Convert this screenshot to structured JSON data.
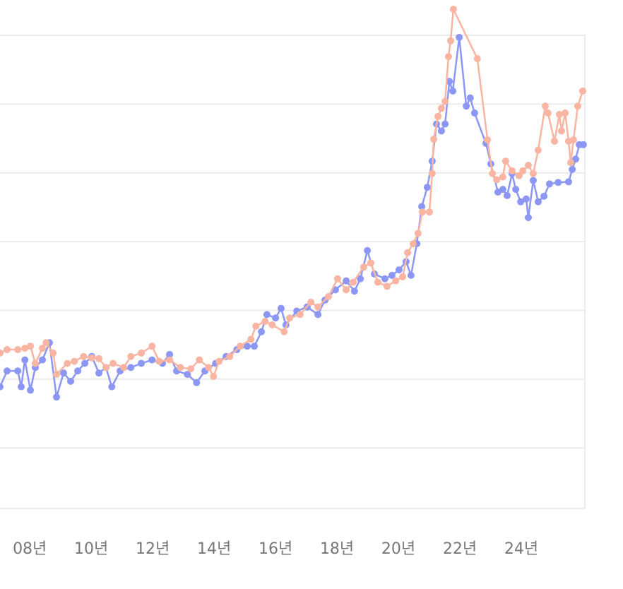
{
  "chart_data": {
    "type": "line",
    "title": "",
    "xlabel": "",
    "ylabel": "",
    "xlim": [
      2007.03,
      2026.07
    ],
    "ylim": [
      0.12,
      7
    ],
    "y_gridlines": [
      1,
      2,
      3,
      4,
      5,
      6,
      7
    ],
    "grid": true,
    "markers": true,
    "x_ticks": [
      {
        "value": 2008,
        "label": "08년"
      },
      {
        "value": 2010,
        "label": "10년"
      },
      {
        "value": 2012,
        "label": "12년"
      },
      {
        "value": 2014,
        "label": "14년"
      },
      {
        "value": 2016,
        "label": "16년"
      },
      {
        "value": 2018,
        "label": "18년"
      },
      {
        "value": 2020,
        "label": "20년"
      },
      {
        "value": 2022,
        "label": "22년"
      },
      {
        "value": 2024,
        "label": "24년"
      }
    ],
    "colors": {
      "grid": "#ebebeb",
      "tick_text": "#777777"
    },
    "series": [
      {
        "color": "#8c97f5",
        "points": [
          [
            2007.03,
            1.89
          ],
          [
            2007.26,
            2.12
          ],
          [
            2007.61,
            2.12
          ],
          [
            2007.72,
            1.89
          ],
          [
            2007.84,
            2.28
          ],
          [
            2008.02,
            1.84
          ],
          [
            2008.18,
            2.17
          ],
          [
            2008.41,
            2.28
          ],
          [
            2008.64,
            2.53
          ],
          [
            2008.87,
            1.74
          ],
          [
            2009.1,
            2.09
          ],
          [
            2009.33,
            1.97
          ],
          [
            2009.56,
            2.12
          ],
          [
            2009.79,
            2.23
          ],
          [
            2010.02,
            2.33
          ],
          [
            2010.25,
            2.09
          ],
          [
            2010.48,
            2.17
          ],
          [
            2010.67,
            1.89
          ],
          [
            2010.94,
            2.12
          ],
          [
            2011.29,
            2.17
          ],
          [
            2011.63,
            2.23
          ],
          [
            2011.98,
            2.28
          ],
          [
            2012.32,
            2.23
          ],
          [
            2012.55,
            2.36
          ],
          [
            2012.78,
            2.12
          ],
          [
            2013.13,
            2.07
          ],
          [
            2013.43,
            1.95
          ],
          [
            2013.7,
            2.12
          ],
          [
            2014.05,
            2.23
          ],
          [
            2014.39,
            2.33
          ],
          [
            2014.74,
            2.43
          ],
          [
            2015.08,
            2.48
          ],
          [
            2015.31,
            2.48
          ],
          [
            2015.54,
            2.69
          ],
          [
            2015.72,
            2.94
          ],
          [
            2016.0,
            2.89
          ],
          [
            2016.18,
            3.03
          ],
          [
            2016.34,
            2.79
          ],
          [
            2016.69,
            2.99
          ],
          [
            2017.03,
            3.05
          ],
          [
            2017.38,
            2.94
          ],
          [
            2017.61,
            3.15
          ],
          [
            2017.95,
            3.3
          ],
          [
            2018.3,
            3.43
          ],
          [
            2018.57,
            3.28
          ],
          [
            2018.76,
            3.46
          ],
          [
            2018.99,
            3.87
          ],
          [
            2019.22,
            3.53
          ],
          [
            2019.56,
            3.46
          ],
          [
            2019.79,
            3.51
          ],
          [
            2020.02,
            3.59
          ],
          [
            2020.25,
            3.71
          ],
          [
            2020.41,
            3.51
          ],
          [
            2020.6,
            3.97
          ],
          [
            2020.76,
            4.51
          ],
          [
            2020.94,
            4.79
          ],
          [
            2021.1,
            5.17
          ],
          [
            2021.24,
            5.71
          ],
          [
            2021.4,
            5.61
          ],
          [
            2021.52,
            5.71
          ],
          [
            2021.66,
            6.33
          ],
          [
            2021.77,
            6.19
          ],
          [
            2021.98,
            6.97
          ],
          [
            2022.21,
            5.97
          ],
          [
            2022.34,
            6.09
          ],
          [
            2022.48,
            5.87
          ],
          [
            2022.85,
            5.43
          ],
          [
            2023.01,
            5.13
          ],
          [
            2023.24,
            4.72
          ],
          [
            2023.4,
            4.76
          ],
          [
            2023.54,
            4.67
          ],
          [
            2023.7,
            4.99
          ],
          [
            2023.82,
            4.76
          ],
          [
            2023.98,
            4.58
          ],
          [
            2024.16,
            4.62
          ],
          [
            2024.23,
            4.35
          ],
          [
            2024.39,
            4.89
          ],
          [
            2024.55,
            4.58
          ],
          [
            2024.74,
            4.66
          ],
          [
            2024.92,
            4.84
          ],
          [
            2025.2,
            4.86
          ],
          [
            2025.54,
            4.87
          ],
          [
            2025.66,
            5.05
          ],
          [
            2025.77,
            5.2
          ],
          [
            2025.89,
            5.41
          ],
          [
            2026.02,
            5.41
          ]
        ]
      },
      {
        "color": "#f9b4a2",
        "points": [
          [
            2007.03,
            2.38
          ],
          [
            2007.26,
            2.43
          ],
          [
            2007.61,
            2.43
          ],
          [
            2007.84,
            2.45
          ],
          [
            2008.02,
            2.48
          ],
          [
            2008.18,
            2.23
          ],
          [
            2008.41,
            2.45
          ],
          [
            2008.53,
            2.53
          ],
          [
            2008.76,
            2.38
          ],
          [
            2008.87,
            2.07
          ],
          [
            2009.22,
            2.23
          ],
          [
            2009.45,
            2.26
          ],
          [
            2009.75,
            2.33
          ],
          [
            2010.02,
            2.31
          ],
          [
            2010.25,
            2.3
          ],
          [
            2010.48,
            2.17
          ],
          [
            2010.71,
            2.23
          ],
          [
            2011.06,
            2.17
          ],
          [
            2011.29,
            2.33
          ],
          [
            2011.63,
            2.38
          ],
          [
            2011.98,
            2.48
          ],
          [
            2012.21,
            2.26
          ],
          [
            2012.55,
            2.28
          ],
          [
            2012.9,
            2.17
          ],
          [
            2013.24,
            2.15
          ],
          [
            2013.52,
            2.28
          ],
          [
            2013.82,
            2.17
          ],
          [
            2013.98,
            2.04
          ],
          [
            2014.16,
            2.26
          ],
          [
            2014.51,
            2.33
          ],
          [
            2014.85,
            2.48
          ],
          [
            2015.2,
            2.58
          ],
          [
            2015.36,
            2.77
          ],
          [
            2015.66,
            2.84
          ],
          [
            2015.89,
            2.79
          ],
          [
            2016.28,
            2.69
          ],
          [
            2016.46,
            2.89
          ],
          [
            2016.8,
            2.94
          ],
          [
            2017.15,
            3.12
          ],
          [
            2017.38,
            3.05
          ],
          [
            2017.72,
            3.2
          ],
          [
            2018.02,
            3.46
          ],
          [
            2018.3,
            3.3
          ],
          [
            2018.53,
            3.41
          ],
          [
            2018.87,
            3.63
          ],
          [
            2019.1,
            3.69
          ],
          [
            2019.33,
            3.41
          ],
          [
            2019.63,
            3.35
          ],
          [
            2019.91,
            3.43
          ],
          [
            2020.14,
            3.49
          ],
          [
            2020.3,
            3.84
          ],
          [
            2020.48,
            3.97
          ],
          [
            2020.64,
            4.12
          ],
          [
            2020.78,
            4.43
          ],
          [
            2021.01,
            4.43
          ],
          [
            2021.1,
            4.99
          ],
          [
            2021.15,
            5.49
          ],
          [
            2021.29,
            5.82
          ],
          [
            2021.4,
            5.94
          ],
          [
            2021.52,
            6.04
          ],
          [
            2021.63,
            6.69
          ],
          [
            2021.7,
            6.92
          ],
          [
            2021.79,
            7.38
          ],
          [
            2022.57,
            6.66
          ],
          [
            2022.9,
            5.48
          ],
          [
            2023.06,
            4.99
          ],
          [
            2023.2,
            4.9
          ],
          [
            2023.4,
            4.94
          ],
          [
            2023.49,
            5.17
          ],
          [
            2023.7,
            5.03
          ],
          [
            2023.93,
            4.96
          ],
          [
            2024.05,
            5.03
          ],
          [
            2024.23,
            5.11
          ],
          [
            2024.39,
            4.99
          ],
          [
            2024.55,
            5.33
          ],
          [
            2024.78,
            5.97
          ],
          [
            2024.87,
            5.87
          ],
          [
            2025.08,
            5.46
          ],
          [
            2025.24,
            5.85
          ],
          [
            2025.31,
            5.61
          ],
          [
            2025.43,
            5.87
          ],
          [
            2025.54,
            5.46
          ],
          [
            2025.61,
            5.15
          ],
          [
            2025.7,
            5.48
          ],
          [
            2025.84,
            5.97
          ],
          [
            2026.0,
            6.19
          ]
        ]
      }
    ]
  }
}
